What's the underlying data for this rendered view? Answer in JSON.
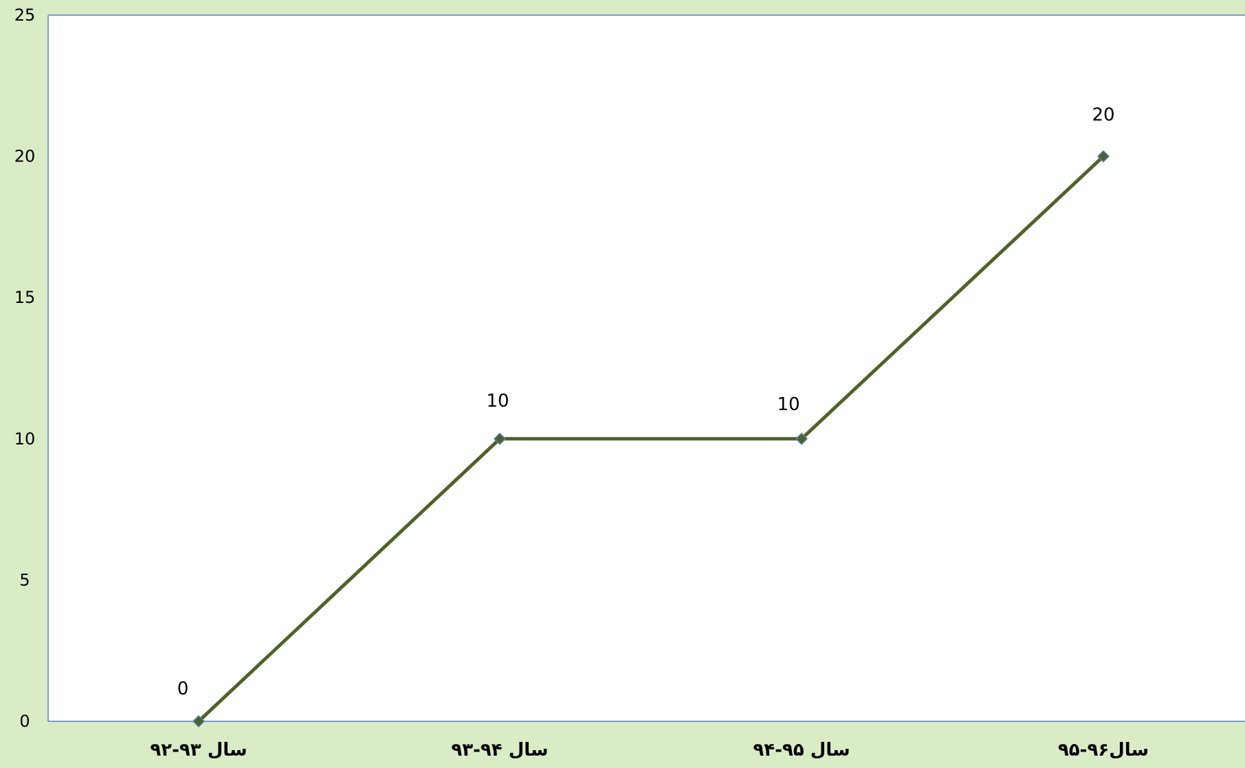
{
  "colors": {
    "background": "#d9ecc6",
    "plot_area": "#ffffff",
    "line": "#4f6228",
    "marker_fill": "#4f6228",
    "marker_stroke": "#4f81bd",
    "axis": "#5b7fc0",
    "text": "#000000"
  },
  "chart_data": {
    "type": "line",
    "categories": [
      "سال ۹۳-۹۲",
      "سال ۹۴-۹۳",
      "سال ۹۵-۹۴",
      "سال۹۶-۹۵"
    ],
    "series": [
      {
        "values": [
          0,
          10,
          10,
          20
        ],
        "marker": "diamond"
      }
    ],
    "data_labels": [
      "0",
      "10",
      "10",
      "20"
    ],
    "y_ticks": [
      "0",
      "5",
      "10",
      "15",
      "20",
      "25"
    ],
    "ylim": [
      0,
      25
    ],
    "grid": false,
    "legend": "none",
    "title": "",
    "xlabel": "",
    "ylabel": ""
  }
}
